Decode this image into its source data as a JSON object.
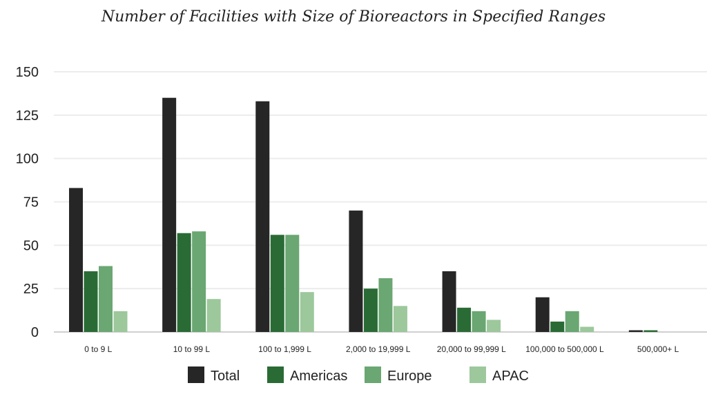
{
  "chart_data": {
    "type": "bar",
    "title": "Number of Facilities with Size of Bioreactors in Specified Ranges",
    "xlabel": "",
    "ylabel": "",
    "ylim": [
      0,
      150
    ],
    "yticks": [
      0,
      25,
      50,
      75,
      100,
      125,
      150
    ],
    "grid": true,
    "legend_position": "bottom",
    "categories": [
      "0 to 9 L",
      "10 to 99 L",
      "100 to 1,999 L",
      "2,000 to 19,999 L",
      "20,000 to 99,999 L",
      "100,000 to 500,000 L",
      "500,000+ L"
    ],
    "series": [
      {
        "name": "Total",
        "color": "#262626",
        "values": [
          83,
          135,
          133,
          70,
          35,
          20,
          1
        ]
      },
      {
        "name": "Americas",
        "color": "#2a6b35",
        "values": [
          35,
          57,
          56,
          25,
          14,
          6,
          1
        ]
      },
      {
        "name": "Europe",
        "color": "#6aa772",
        "values": [
          38,
          58,
          56,
          31,
          12,
          12,
          0
        ]
      },
      {
        "name": "APAC",
        "color": "#9cc89c",
        "values": [
          12,
          19,
          23,
          15,
          7,
          3,
          0
        ]
      }
    ]
  }
}
